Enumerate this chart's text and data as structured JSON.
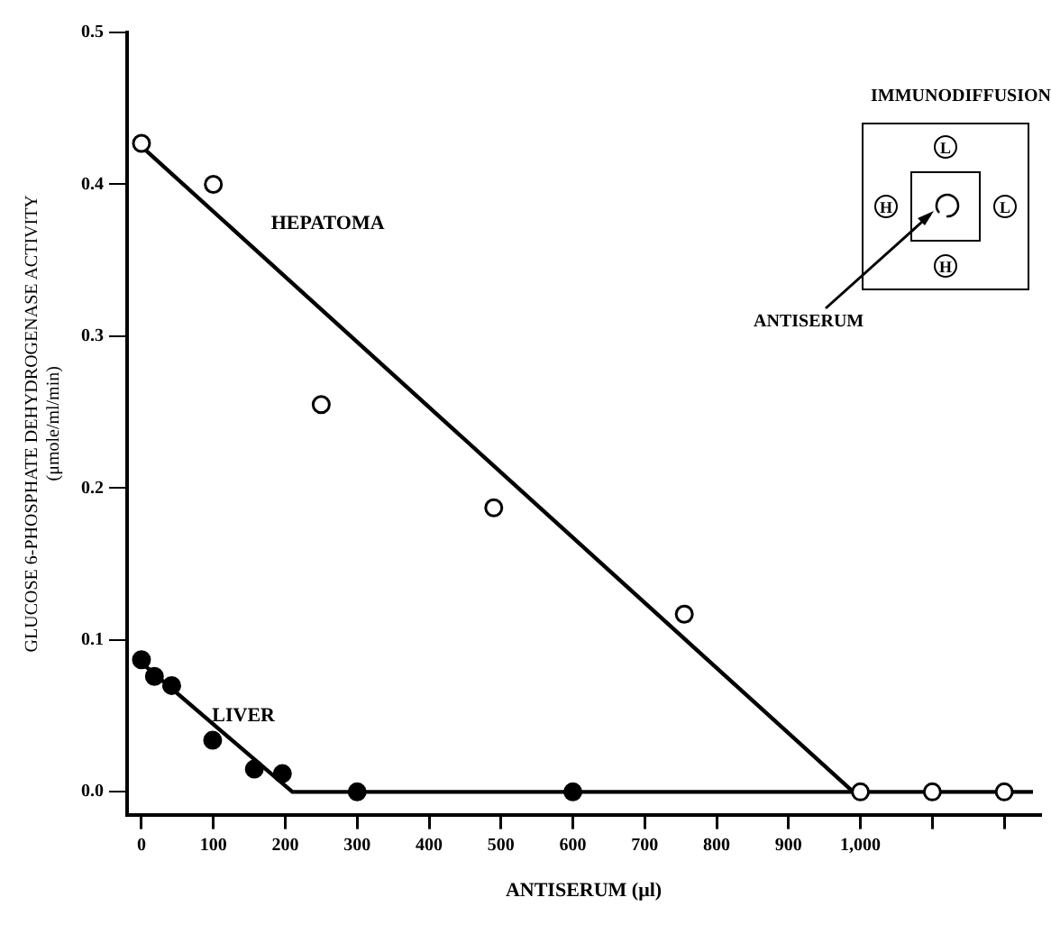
{
  "chart_data": {
    "type": "scatter",
    "xlabel": "ANTISERUM (μl)",
    "ylabel": "GLUCOSE 6-PHOSPHATE DEHYDROGENASE ACTIVITY\n(μmole/ml/min)",
    "series": [
      {
        "name": "HEPATOMA",
        "color": "#000000",
        "marker": "circle",
        "x": [
          0,
          100,
          250,
          490,
          755,
          1000,
          1100,
          1200
        ],
        "values": [
          0.427,
          0.4,
          0.255,
          0.187,
          0.117,
          0,
          0,
          0
        ]
      },
      {
        "name": "LIVER",
        "color": "#000000",
        "marker": "circle",
        "x": [
          0,
          18,
          42,
          99,
          157,
          196,
          300,
          600
        ],
        "values": [
          0.087,
          0.076,
          0.07,
          0.034,
          0.015,
          0.012,
          0,
          0
        ]
      },
      {
        "type": "line",
        "color": "#000000",
        "marker": "none",
        "line_style": "solid",
        "x": [
          0,
          990,
          1240
        ],
        "values": [
          0.425,
          0,
          0
        ]
      },
      {
        "type": "line",
        "color": "#000000",
        "marker": "none",
        "line_style": "solid",
        "x": [
          0,
          210,
          1000
        ],
        "values": [
          0.085,
          0,
          0
        ]
      }
    ],
    "xlim": [
      -20,
      1250
    ],
    "xticks": [
      0,
      100,
      200,
      300,
      400,
      500,
      600,
      700,
      800,
      900,
      {
        "value": 1000,
        "label": "1,000"
      },
      {
        "value": 1100,
        "label": null
      },
      {
        "value": 1200,
        "label": null
      }
    ],
    "ylim": [
      -0.015,
      0.5
    ],
    "yticks": [
      {
        "value": 0,
        "label": "0.0"
      },
      0.1,
      0.2,
      0.3,
      0.4,
      0.5
    ],
    "grid": false,
    "legend": false,
    "annotations": [
      "IMMUNODIFFUSION",
      "ANTISERUM",
      "L",
      "H",
      "L",
      "H"
    ]
  }
}
